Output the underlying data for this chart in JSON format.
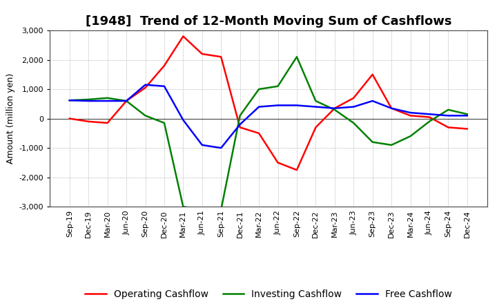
{
  "title": "[1948]  Trend of 12-Month Moving Sum of Cashflows",
  "ylabel": "Amount (million yen)",
  "x_labels": [
    "Sep-19",
    "Dec-19",
    "Mar-20",
    "Jun-20",
    "Sep-20",
    "Dec-20",
    "Mar-21",
    "Jun-21",
    "Sep-21",
    "Dec-21",
    "Mar-22",
    "Jun-22",
    "Sep-22",
    "Dec-22",
    "Mar-23",
    "Jun-23",
    "Sep-23",
    "Dec-23",
    "Mar-24",
    "Jun-24",
    "Sep-24",
    "Dec-24"
  ],
  "operating": [
    0,
    -100,
    -150,
    600,
    1050,
    1800,
    2800,
    2200,
    2100,
    -300,
    -500,
    -1500,
    -1750,
    -300,
    350,
    700,
    1500,
    350,
    100,
    50,
    -300,
    -350
  ],
  "investing": [
    620,
    650,
    700,
    600,
    100,
    -150,
    -3000,
    -3100,
    -3100,
    100,
    1000,
    1100,
    2100,
    600,
    300,
    -150,
    -800,
    -900,
    -600,
    -100,
    300,
    150
  ],
  "free": [
    620,
    600,
    600,
    600,
    1150,
    1100,
    -50,
    -900,
    -1000,
    -200,
    400,
    450,
    450,
    400,
    350,
    400,
    600,
    350,
    200,
    150,
    100,
    100
  ],
  "ylim": [
    -3000,
    3000
  ],
  "yticks": [
    -3000,
    -2000,
    -1000,
    0,
    1000,
    2000,
    3000
  ],
  "operating_color": "#ff0000",
  "investing_color": "#008000",
  "free_color": "#0000ff",
  "bg_color": "#ffffff",
  "plot_bg_color": "#ffffff",
  "grid_color": "#999999",
  "line_width": 1.8,
  "title_fontsize": 13,
  "legend_fontsize": 10,
  "tick_fontsize": 8,
  "ylabel_fontsize": 9
}
